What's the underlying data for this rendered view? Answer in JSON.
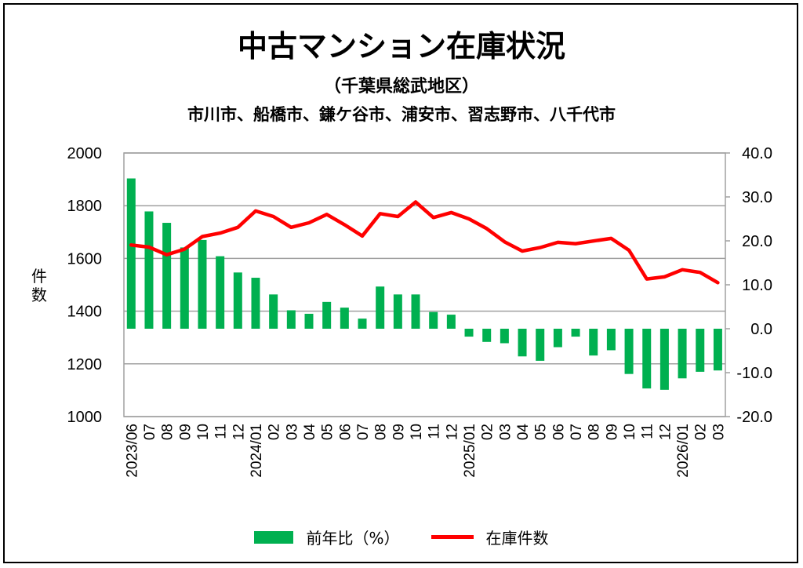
{
  "chart_data": {
    "type": "bar+line",
    "title": "中古マンション在庫状況",
    "subtitle": "（千葉県総武地区）",
    "subtitle2": "市川市、船橋市、鎌ケ谷市、浦安市、習志野市、八千代市",
    "ylabel": "件数",
    "ylim": [
      1000,
      2000
    ],
    "y2lim": [
      -20,
      40
    ],
    "yticks": [
      "2000",
      "1800",
      "1600",
      "1400",
      "1200",
      "1000"
    ],
    "y2ticks": [
      "40.0",
      "30.0",
      "20.0",
      "10.0",
      "0.0",
      "-10.0",
      "-20.0"
    ],
    "grid": true,
    "legend_position": "bottom",
    "categories": [
      "2023/06",
      "07",
      "08",
      "09",
      "10",
      "11",
      "12",
      "2024/01",
      "02",
      "03",
      "04",
      "05",
      "06",
      "07",
      "08",
      "09",
      "10",
      "11",
      "12",
      "2025/01",
      "02",
      "03",
      "04",
      "05",
      "06",
      "07",
      "08",
      "09",
      "10",
      "11",
      "12",
      "2026/01",
      "02",
      "03"
    ],
    "series": [
      {
        "name": "前年比（%）",
        "type": "bar",
        "axis": "right",
        "color": "#00b050",
        "values": [
          34.2,
          26.7,
          24.1,
          18.5,
          20.2,
          16.5,
          12.8,
          11.6,
          7.8,
          4.2,
          3.4,
          6.1,
          4.8,
          2.3,
          9.6,
          7.8,
          7.8,
          3.8,
          3.2,
          -1.8,
          -3.0,
          -3.3,
          -6.3,
          -7.3,
          -4.2,
          -1.8,
          -6.1,
          -4.9,
          -10.3,
          -13.6,
          -13.9,
          -11.3,
          -9.8,
          -9.5
        ]
      },
      {
        "name": "在庫件数",
        "type": "line",
        "axis": "left",
        "color": "#ff0000",
        "values": [
          1651,
          1643,
          1614,
          1635,
          1683,
          1696,
          1718,
          1780,
          1759,
          1718,
          1735,
          1767,
          1728,
          1685,
          1770,
          1759,
          1814,
          1755,
          1774,
          1750,
          1713,
          1663,
          1628,
          1641,
          1661,
          1656,
          1666,
          1676,
          1631,
          1522,
          1530,
          1557,
          1547,
          1508
        ]
      }
    ]
  }
}
